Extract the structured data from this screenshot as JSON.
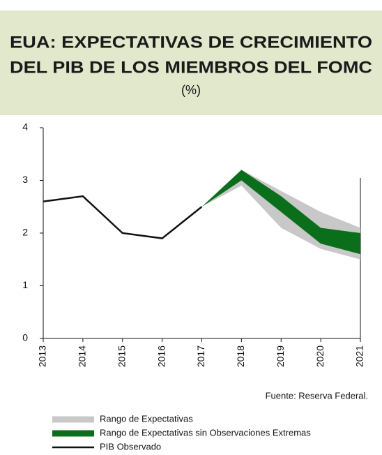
{
  "chart_data": {
    "type": "band_line",
    "title_line1": "EUA: EXPECTATIVAS DE CRECIMIENTO",
    "title_line2": "DEL PIB DE LOS MIEMBROS DEL FOMC",
    "subtitle": "(%)",
    "x": [
      2013,
      2014,
      2015,
      2016,
      2017,
      2018,
      2019,
      2020,
      2021
    ],
    "xlim": [
      2013,
      2021
    ],
    "xticks": [
      2013,
      2014,
      2015,
      2016,
      2017,
      2018,
      2019,
      2020,
      2021
    ],
    "ylim": [
      0,
      4
    ],
    "yticks": [
      0,
      1,
      2,
      3,
      4
    ],
    "bands": [
      {
        "name": "Rango de Expectativas",
        "color": "#c8c8c8",
        "low": [
          null,
          null,
          null,
          null,
          2.5,
          2.9,
          2.1,
          1.7,
          1.5
        ],
        "high": [
          null,
          null,
          null,
          null,
          2.5,
          3.2,
          2.8,
          2.4,
          2.1
        ]
      },
      {
        "name": "Rango de Expectativas sin Observaciones Extremas",
        "color": "#0b6e1a",
        "low": [
          null,
          null,
          null,
          null,
          2.5,
          3.0,
          2.4,
          1.8,
          1.6
        ],
        "high": [
          null,
          null,
          null,
          null,
          2.5,
          3.2,
          2.7,
          2.1,
          2.0
        ]
      }
    ],
    "series": [
      {
        "name": "PIB Observado",
        "color": "#111111",
        "values": [
          2.6,
          2.7,
          2.0,
          1.9,
          2.5,
          null,
          null,
          null,
          null
        ]
      }
    ],
    "source": "Fuente: Reserva Federal."
  }
}
